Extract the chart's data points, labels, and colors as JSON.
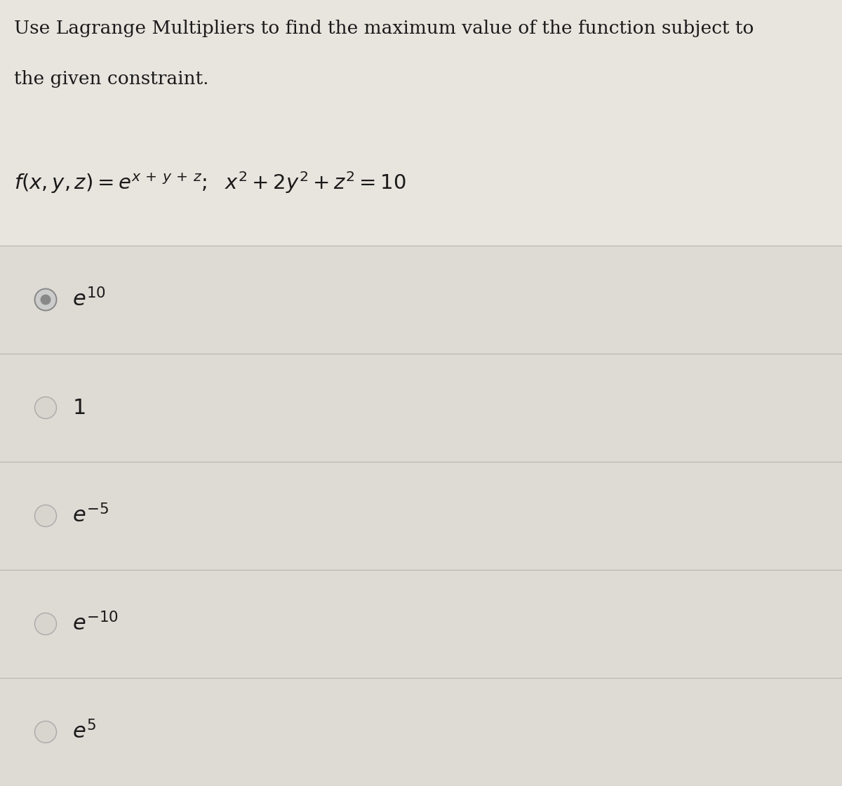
{
  "background_color": "#e8e4de",
  "options_bg_color": "#dedad4",
  "header_text_line1": "Use Lagrange Multipliers to find the maximum value of the function subject to",
  "header_text_line2": "the given constraint.",
  "divider_color": "#b8b4ae",
  "text_color": "#1a1a1a",
  "radio_color": "#aaaaaa",
  "radio_selected_fill": "#888888",
  "radio_selected_edge": "#888888",
  "font_size_header": 19,
  "font_size_function": 21,
  "font_size_options": 22,
  "option_labels_latex": [
    "$e^{10}$",
    "$1$",
    "$e^{-5}$",
    "$e^{-10}$",
    "$e^{5}$"
  ],
  "selected_idx": 0,
  "fig_width": 12.0,
  "fig_height": 11.2,
  "dpi": 100
}
